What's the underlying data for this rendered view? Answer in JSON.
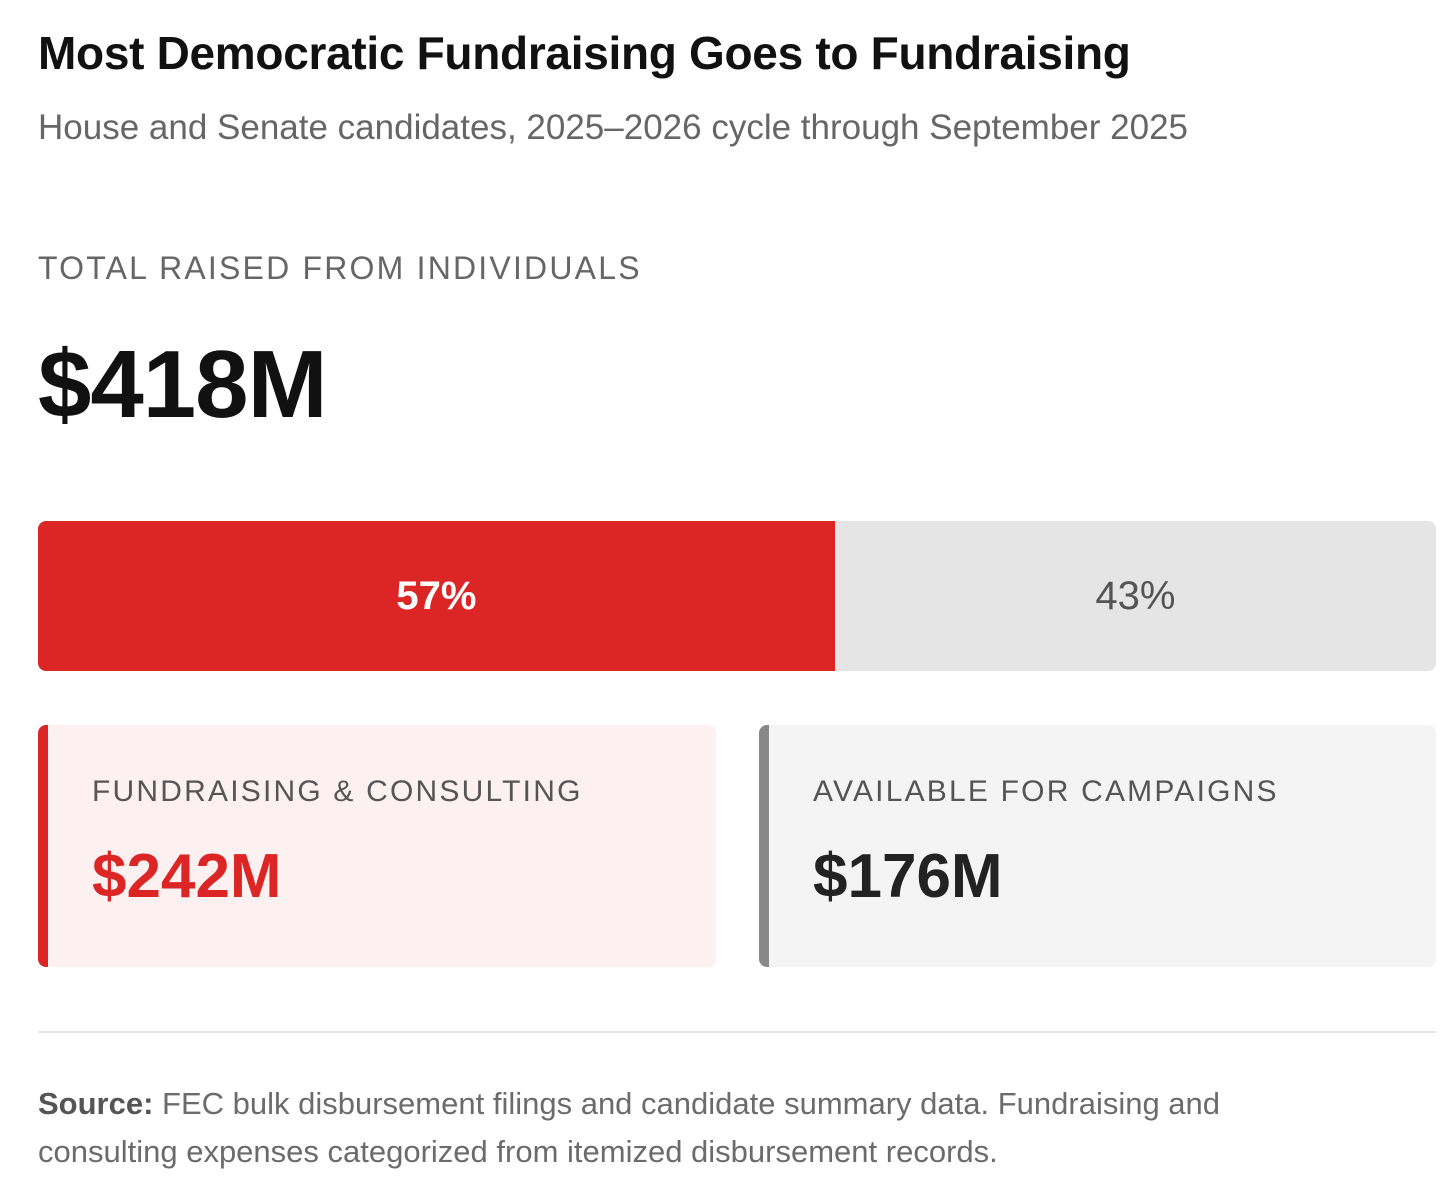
{
  "title": "Most Democratic Fundraising Goes to Fundraising",
  "subtitle": "House and Senate candidates, 2025–2026 cycle through September 2025",
  "total": {
    "label": "TOTAL RAISED FROM INDIVIDUALS",
    "value": "$418M"
  },
  "colors": {
    "accent": "#dc2626",
    "neutral_bar": "#e5e5e5",
    "neutral_accent": "#888888",
    "card_a_bg": "#fcf0f0",
    "card_b_bg": "#f4f4f4"
  },
  "chart_data": {
    "type": "bar",
    "orientation": "horizontal-stacked",
    "categories": [
      "FUNDRAISING & CONSULTING",
      "AVAILABLE FOR CAMPAIGNS"
    ],
    "values": [
      57,
      43
    ],
    "value_labels": [
      "57%",
      "43%"
    ],
    "amounts": [
      "$242M",
      "$176M"
    ],
    "total": "$418M"
  },
  "cards": [
    {
      "label": "FUNDRAISING & CONSULTING",
      "value": "$242M"
    },
    {
      "label": "AVAILABLE FOR CAMPAIGNS",
      "value": "$176M"
    }
  ],
  "source": {
    "label": "Source:",
    "text": " FEC bulk disbursement filings and candidate summary data. Fundraising and consulting expenses categorized from itemized disbursement records."
  }
}
